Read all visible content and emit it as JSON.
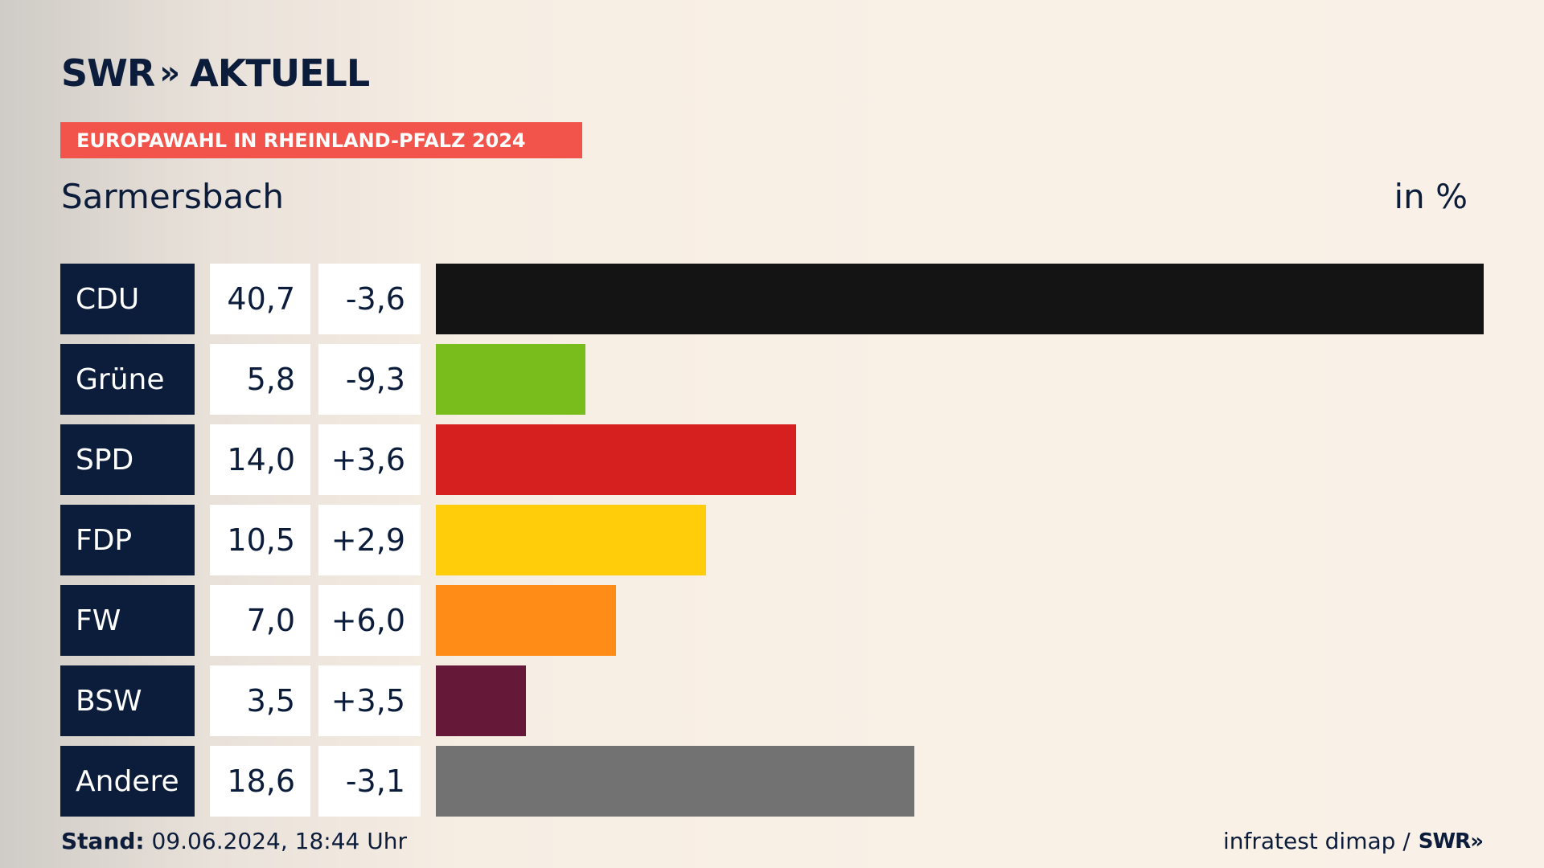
{
  "brand": {
    "logo_part1": "SWR",
    "logo_chevrons": "»",
    "logo_part2": "AKTUELL"
  },
  "tag": "EUROPAWAHL IN RHEINLAND-PFALZ 2024",
  "region": "Sarmersbach",
  "unit": "in %",
  "colors": {
    "navy": "#0c1c3b",
    "tag": "#f2534a",
    "CDU": "#141414",
    "Grüne": "#79bd1c",
    "SPD": "#d6201f",
    "FDP": "#ffcd0a",
    "FW": "#ff8c17",
    "BSW": "#661839",
    "Andere": "#727273"
  },
  "chart_data": {
    "type": "bar",
    "categories": [
      "CDU",
      "Grüne",
      "SPD",
      "FDP",
      "FW",
      "BSW",
      "Andere"
    ],
    "values": [
      40.7,
      5.8,
      14.0,
      10.5,
      7.0,
      3.5,
      18.6
    ],
    "value_labels": [
      "40,7",
      "5,8",
      "14,0",
      "10,5",
      "7,0",
      "3,5",
      "18,6"
    ],
    "diff_labels": [
      "-3,6",
      "-9,3",
      "+3,6",
      "+2,9",
      "+6,0",
      "+3,5",
      "-3,1"
    ],
    "diffs": [
      -3.6,
      -9.3,
      3.6,
      2.9,
      6.0,
      3.5,
      -3.1
    ],
    "xlim": [
      0,
      40.7
    ],
    "orientation": "horizontal"
  },
  "footer": {
    "stand_label": "Stand:",
    "stand_value": "09.06.2024, 18:44 Uhr",
    "source": "infratest dimap /",
    "source_logo": "SWR»"
  }
}
